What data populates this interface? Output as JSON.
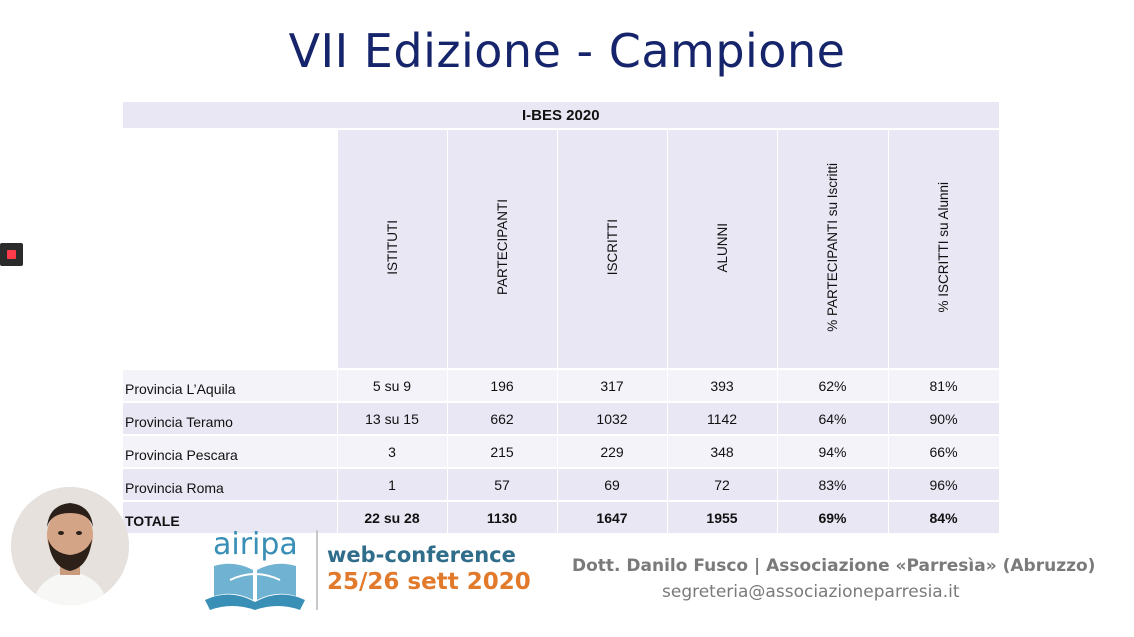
{
  "slide": {
    "title": "VII Edizione - Campione"
  },
  "table": {
    "caption": "I-BES 2020",
    "headers": [
      "ISTITUTI",
      "PARTECIPANTI",
      "ISCRITTI",
      "ALUNNI",
      "% PARTECIPANTI su Iscritti",
      "% ISCRITTI su Alunni"
    ],
    "rows": [
      {
        "label": "Provincia L’Aquila",
        "cells": [
          "5 su 9",
          "196",
          "317",
          "393",
          "62%",
          "81%"
        ]
      },
      {
        "label": "Provincia Teramo",
        "cells": [
          "13 su 15",
          "662",
          "1032",
          "1142",
          "64%",
          "90%"
        ]
      },
      {
        "label": "Provincia Pescara",
        "cells": [
          "3",
          "215",
          "229",
          "348",
          "94%",
          "66%"
        ]
      },
      {
        "label": "Provincia Roma",
        "cells": [
          "1",
          "57",
          "69",
          "72",
          "83%",
          "96%"
        ]
      }
    ],
    "total": {
      "label": "TOTALE",
      "cells": [
        "22 su 28",
        "1130",
        "1647",
        "1955",
        "69%",
        "84%"
      ]
    }
  },
  "footer": {
    "logo_text": "airipa",
    "conference_line1": "web-conference",
    "conference_line2": "25/26 sett 2020",
    "speaker": "Dott. Danilo Fusco | Associazione «Parresìa» (Abruzzo)",
    "email": "segreteria@associazioneparresia.it"
  },
  "colors": {
    "title": "#16256b",
    "table_fill": "#e9e7f4",
    "logo_blue": "#3a8fb7",
    "orange": "#e17a2a"
  },
  "icons": {
    "record": "record-stop-icon"
  }
}
